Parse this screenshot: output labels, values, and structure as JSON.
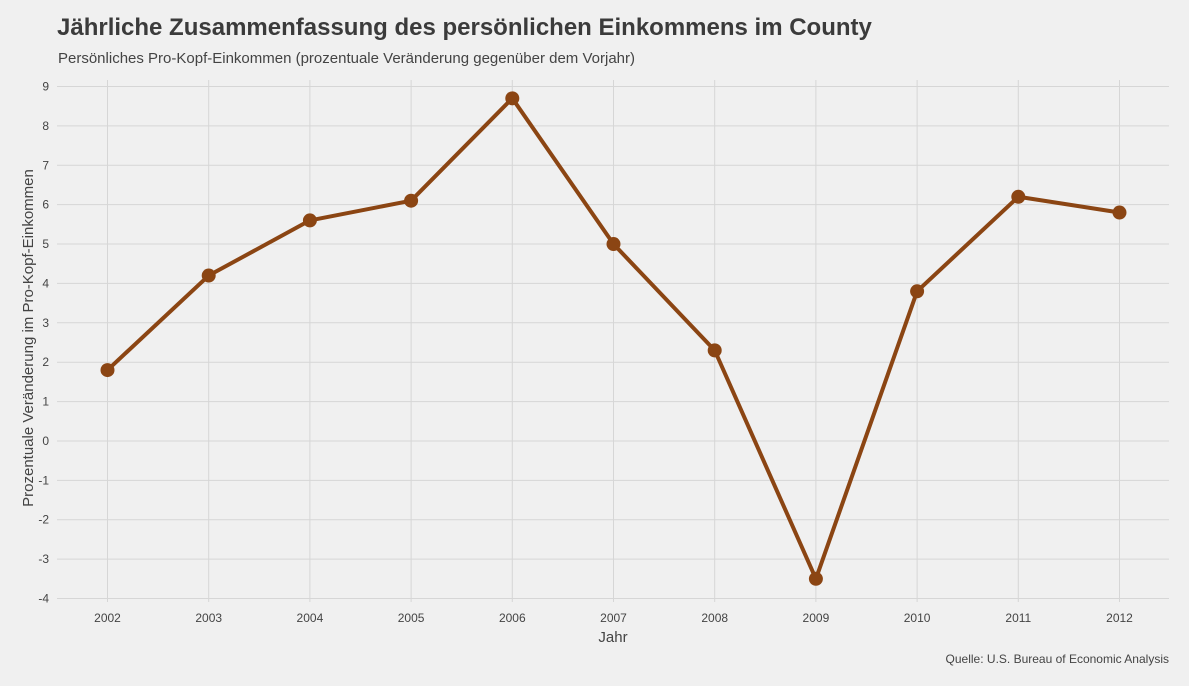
{
  "chart_data": {
    "type": "line",
    "title": "Jährliche Zusammenfassung des persönlichen Einkommens im County",
    "subtitle": "Persönliches Pro-Kopf-Einkommen (prozentuale Veränderung gegenüber dem Vorjahr)",
    "xlabel": "Jahr",
    "ylabel": "Prozentuale Veränderung im Pro-Kopf-Einkommen",
    "caption": "Quelle: U.S. Bureau of Economic Analysis",
    "x": [
      2002,
      2003,
      2004,
      2005,
      2006,
      2007,
      2008,
      2009,
      2010,
      2011,
      2012
    ],
    "series": [
      {
        "values": [
          1.8,
          4.2,
          5.6,
          6.1,
          8.7,
          5.0,
          2.3,
          -3.5,
          3.8,
          6.2,
          5.8
        ],
        "color": "#8b4513"
      }
    ],
    "x_ticks": [
      "2002",
      "2003",
      "2004",
      "2005",
      "2006",
      "2007",
      "2008",
      "2009",
      "2010",
      "2011",
      "2012"
    ],
    "y_ticks": [
      "9",
      "8",
      "7",
      "6",
      "5",
      "4",
      "3",
      "2",
      "1",
      "0",
      "-1",
      "-2",
      "-3",
      "-4"
    ],
    "ylim": [
      -4,
      9
    ],
    "grid": true,
    "legend": "none"
  }
}
